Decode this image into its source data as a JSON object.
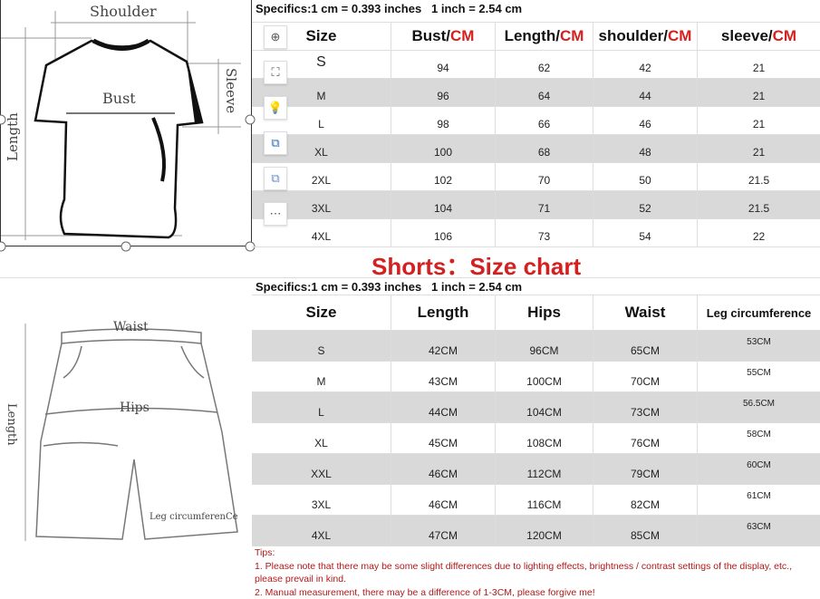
{
  "tshirt": {
    "diagram_labels": {
      "shoulder": "Shoulder",
      "bust": "Bust",
      "sleeve": "Sleeve",
      "length": "Length"
    },
    "specifics": "Specifics:1 cm = 0.393 inches   1 inch = 2.54 cm",
    "headers": [
      {
        "name": "Size",
        "unit": ""
      },
      {
        "name": "Bust/",
        "unit": "CM"
      },
      {
        "name": "Length/",
        "unit": "CM"
      },
      {
        "name": "shoulder/",
        "unit": "CM"
      },
      {
        "name": "sleeve/",
        "unit": "CM"
      }
    ],
    "rows": [
      [
        "S",
        "94",
        "62",
        "42",
        "21"
      ],
      [
        "M",
        "96",
        "64",
        "44",
        "21"
      ],
      [
        "L",
        "98",
        "66",
        "46",
        "21"
      ],
      [
        "XL",
        "100",
        "68",
        "48",
        "21"
      ],
      [
        "2XL",
        "102",
        "70",
        "50",
        "21.5"
      ],
      [
        "3XL",
        "104",
        "71",
        "52",
        "21.5"
      ],
      [
        "4XL",
        "106",
        "73",
        "54",
        "22"
      ]
    ]
  },
  "shorts": {
    "title": "Shorts：Size chart",
    "diagram_labels": {
      "waist": "Waist",
      "hips": "Hips",
      "length": "Length",
      "leg": "Leg circumferenCe"
    },
    "specifics": "Specifics:1 cm = 0.393 inches   1 inch = 2.54 cm",
    "headers": [
      "Size",
      "Length",
      "Hips",
      "Waist",
      "Leg circumference"
    ],
    "rows": [
      [
        "S",
        "42CM",
        "96CM",
        "65CM",
        "53CM"
      ],
      [
        "M",
        "43CM",
        "100CM",
        "70CM",
        "55CM"
      ],
      [
        "L",
        "44CM",
        "104CM",
        "73CM",
        "56.5CM"
      ],
      [
        "XL",
        "45CM",
        "108CM",
        "76CM",
        "58CM"
      ],
      [
        "XXL",
        "46CM",
        "112CM",
        "79CM",
        "60CM"
      ],
      [
        "3XL",
        "46CM",
        "116CM",
        "82CM",
        "61CM"
      ],
      [
        "4XL",
        "47CM",
        "120CM",
        "85CM",
        "63CM"
      ]
    ]
  },
  "tips": {
    "title": "Tips:",
    "line1": "1. Please note that there may be some slight differences due to lighting effects, brightness / contrast settings of the display, etc., please prevail in kind.",
    "line2": "2. Manual measurement, there may be a difference of 1-3CM, please forgive me!"
  },
  "toolbar": [
    "zoom-in-icon",
    "crop-icon",
    "lightbulb-icon",
    "convert-icon",
    "image-extract-icon",
    "more-icon"
  ],
  "colors": {
    "accent_red": "#d42020",
    "row_gray": "#d9d9d9"
  }
}
